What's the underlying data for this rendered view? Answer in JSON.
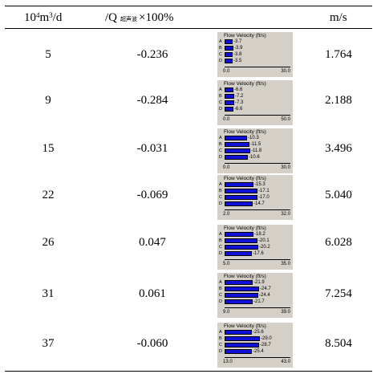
{
  "header": {
    "flow_unit_base": "10",
    "flow_unit_exp1": "4",
    "flow_unit_mid": "m",
    "flow_unit_exp2": "3",
    "flow_unit_tail": "/d",
    "deviation_prefix": "/Q",
    "deviation_sub": "超声波",
    "deviation_suffix": "×100%",
    "speed_unit": "m/s"
  },
  "rows": [
    {
      "flow": "5",
      "deviation": "-0.236",
      "speed": "1.764",
      "chart": {
        "title": "Flow Velocity (ft/s)",
        "labels": [
          "A",
          "B",
          "C",
          "D"
        ],
        "values": [
          3.7,
          3.9,
          3.8,
          3.5
        ],
        "value_labels": [
          "3.7",
          "3.9",
          "3.8",
          "3.5"
        ],
        "min": 0,
        "max": 30,
        "min_label": "0.0",
        "max_label": "30.0"
      }
    },
    {
      "flow": "9",
      "deviation": "-0.284",
      "speed": "2.188",
      "chart": {
        "title": "Flow Velocity (ft/s)",
        "labels": [
          "A",
          "B",
          "C",
          "D"
        ],
        "values": [
          6.6,
          7.2,
          7.3,
          6.6
        ],
        "value_labels": [
          "6.6",
          "7.2",
          "7.3",
          "6.6"
        ],
        "min": 0,
        "max": 50,
        "min_label": "0.0",
        "max_label": "50.0"
      }
    },
    {
      "flow": "15",
      "deviation": "-0.031",
      "speed": "3.496",
      "chart": {
        "title": "Flow Velocity (ft/s)",
        "labels": [
          "A",
          "B",
          "C",
          "D"
        ],
        "values": [
          10.3,
          11.5,
          11.8,
          10.6
        ],
        "value_labels": [
          "10.3",
          "11.5",
          "11.8",
          "10.6"
        ],
        "min": 0,
        "max": 30,
        "min_label": "0.0",
        "max_label": "30.0"
      }
    },
    {
      "flow": "22",
      "deviation": "-0.069",
      "speed": "5.040",
      "chart": {
        "title": "Flow Velocity (ft/s)",
        "labels": [
          "A",
          "B",
          "C",
          "D"
        ],
        "values": [
          15.3,
          17.1,
          17.0,
          14.7
        ],
        "value_labels": [
          "15.3",
          "17.1",
          "17.0",
          "14.7"
        ],
        "min": 2,
        "max": 32,
        "min_label": "2.0",
        "max_label": "32.0"
      }
    },
    {
      "flow": "26",
      "deviation": "0.047",
      "speed": "6.028",
      "chart": {
        "title": "Flow Velocity (ft/s)",
        "labels": [
          "A",
          "B",
          "C",
          "D"
        ],
        "values": [
          18.2,
          20.1,
          20.2,
          17.6
        ],
        "value_labels": [
          "18.2",
          "20.1",
          "20.2",
          "17.6"
        ],
        "min": 5,
        "max": 35,
        "min_label": "5.0",
        "max_label": "35.0"
      }
    },
    {
      "flow": "31",
      "deviation": "0.061",
      "speed": "7.254",
      "chart": {
        "title": "Flow Velocity (ft/s)",
        "labels": [
          "A",
          "B",
          "C",
          "D"
        ],
        "values": [
          21.9,
          24.7,
          24.4,
          21.7
        ],
        "value_labels": [
          "21.9",
          "24.7",
          "24.4",
          "21.7"
        ],
        "min": 9,
        "max": 39,
        "min_label": "9.0",
        "max_label": "39.0"
      }
    },
    {
      "flow": "37",
      "deviation": "-0.060",
      "speed": "8.504",
      "chart": {
        "title": "Flow Velocity (ft/s)",
        "labels": [
          "A",
          "B",
          "C",
          "D"
        ],
        "values": [
          25.6,
          29.0,
          28.7,
          25.4
        ],
        "value_labels": [
          "25.6",
          "29.0",
          "28.7",
          "25.4"
        ],
        "min": 13,
        "max": 43,
        "min_label": "13.0",
        "max_label": "43.0"
      }
    }
  ],
  "colors": {
    "bar": "#1010d8",
    "chart_bg": "#d4d0c8"
  }
}
